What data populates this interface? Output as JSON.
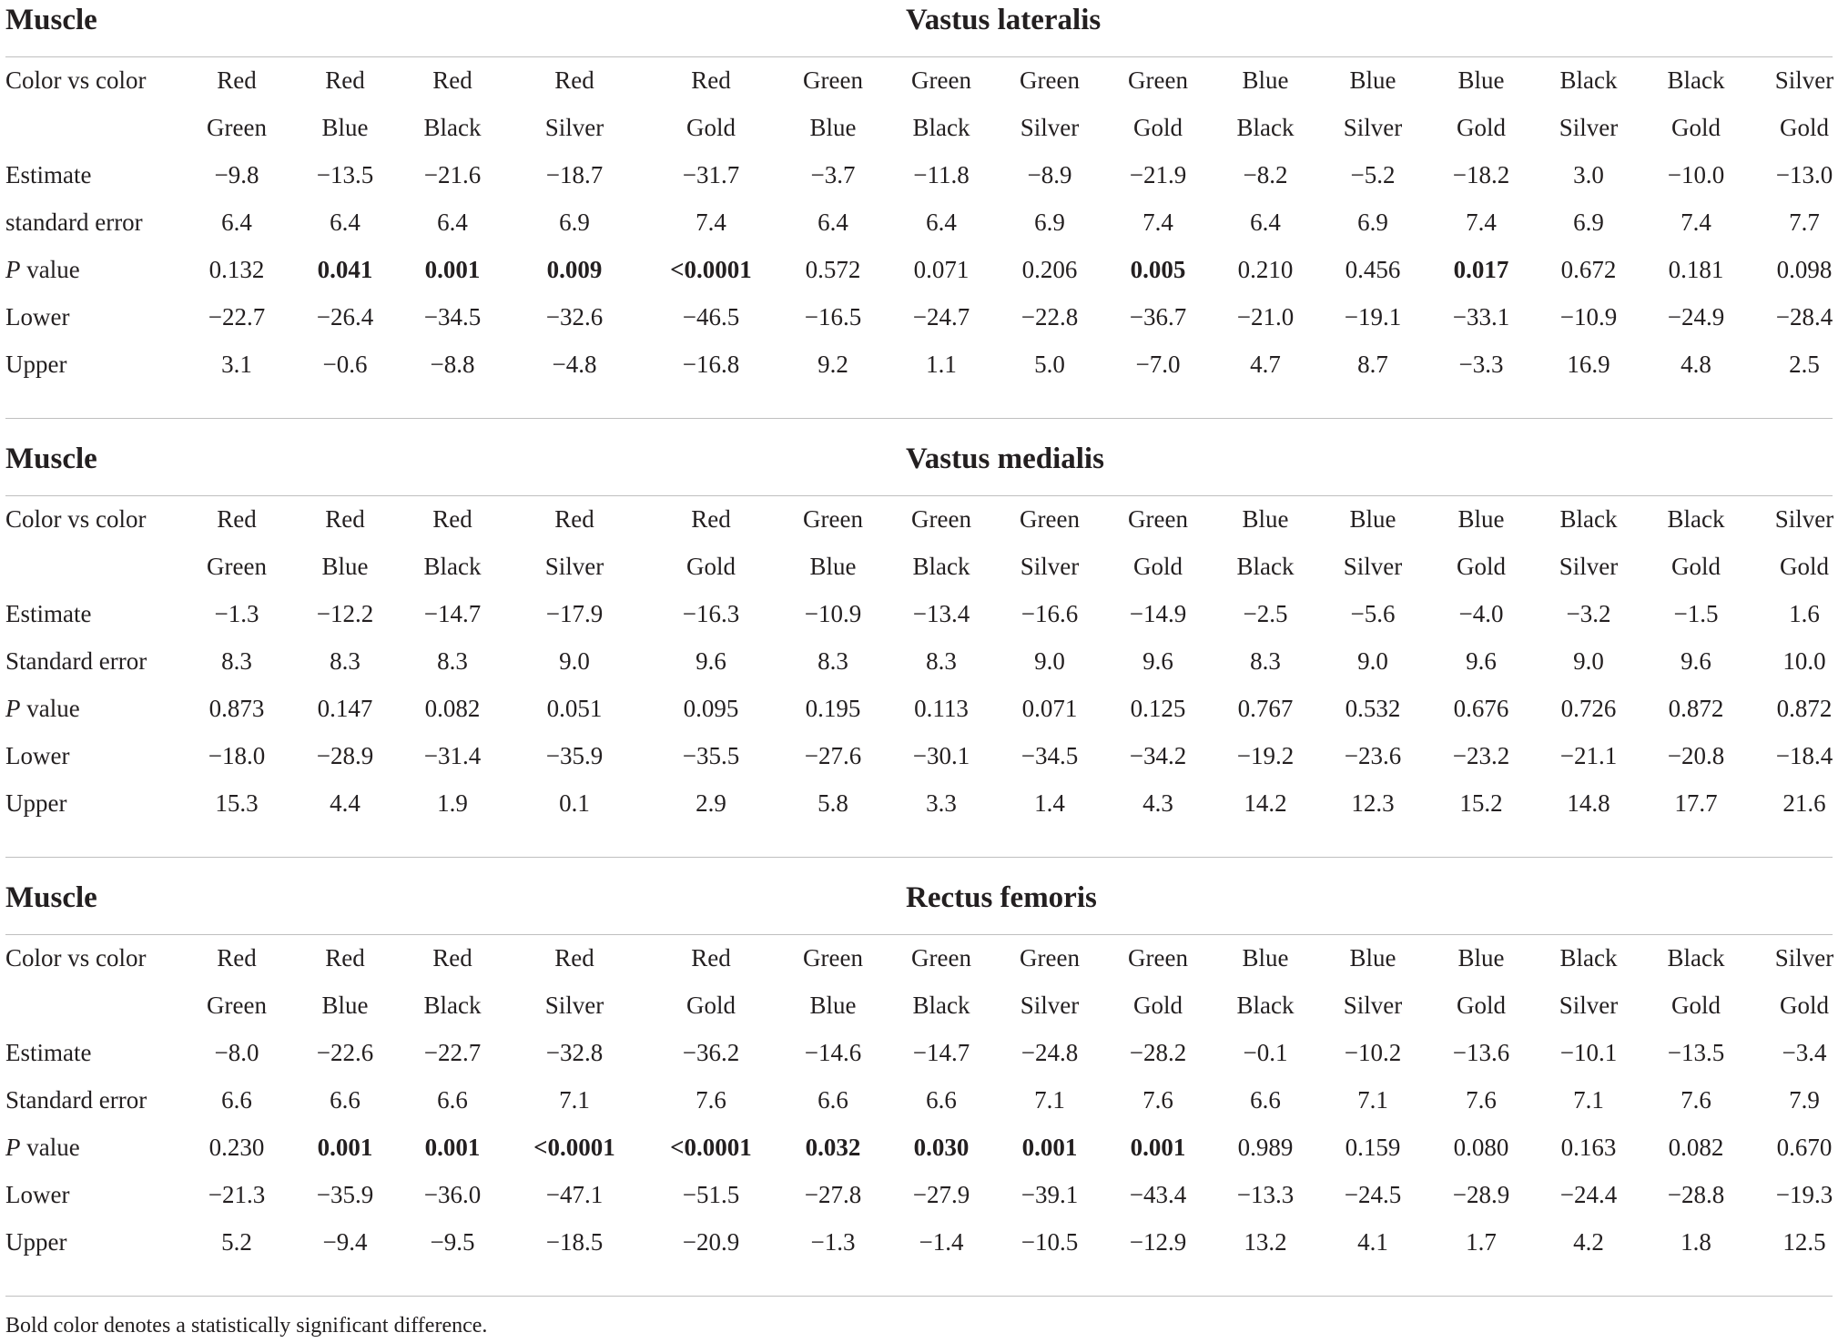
{
  "comparisons": {
    "first": [
      "Red",
      "Red",
      "Red",
      "Red",
      "Red",
      "Green",
      "Green",
      "Green",
      "Green",
      "Blue",
      "Blue",
      "Blue",
      "Black",
      "Black",
      "Silver"
    ],
    "second": [
      "Green",
      "Blue",
      "Black",
      "Silver",
      "Gold",
      "Blue",
      "Black",
      "Silver",
      "Gold",
      "Black",
      "Silver",
      "Gold",
      "Silver",
      "Gold",
      "Gold"
    ]
  },
  "labels": {
    "muscle": "Muscle",
    "color_vs_color": "Color vs color",
    "estimate": "Estimate",
    "p_italic": "P",
    "p_rest": " value",
    "lower": "Lower",
    "upper": "Upper"
  },
  "sections": [
    {
      "name": "Vastus lateralis",
      "se_label": "standard error",
      "estimate": [
        "−9.8",
        "−13.5",
        "−21.6",
        "−18.7",
        "−31.7",
        "−3.7",
        "−11.8",
        "−8.9",
        "−21.9",
        "−8.2",
        "−5.2",
        "−18.2",
        "3.0",
        "−10.0",
        "−13.0"
      ],
      "se": [
        "6.4",
        "6.4",
        "6.4",
        "6.9",
        "7.4",
        "6.4",
        "6.4",
        "6.9",
        "7.4",
        "6.4",
        "6.9",
        "7.4",
        "6.9",
        "7.4",
        "7.7"
      ],
      "p": [
        "0.132",
        "0.041",
        "0.001",
        "0.009",
        "<0.0001",
        "0.572",
        "0.071",
        "0.206",
        "0.005",
        "0.210",
        "0.456",
        "0.017",
        "0.672",
        "0.181",
        "0.098"
      ],
      "p_bold": [
        false,
        true,
        true,
        true,
        true,
        false,
        false,
        false,
        true,
        false,
        false,
        true,
        false,
        false,
        false
      ],
      "lower": [
        "−22.7",
        "−26.4",
        "−34.5",
        "−32.6",
        "−46.5",
        "−16.5",
        "−24.7",
        "−22.8",
        "−36.7",
        "−21.0",
        "−19.1",
        "−33.1",
        "−10.9",
        "−24.9",
        "−28.4"
      ],
      "upper": [
        "3.1",
        "−0.6",
        "−8.8",
        "−4.8",
        "−16.8",
        "9.2",
        "1.1",
        "5.0",
        "−7.0",
        "4.7",
        "8.7",
        "−3.3",
        "16.9",
        "4.8",
        "2.5"
      ]
    },
    {
      "name": "Vastus medialis",
      "se_label": "Standard error",
      "estimate": [
        "−1.3",
        "−12.2",
        "−14.7",
        "−17.9",
        "−16.3",
        "−10.9",
        "−13.4",
        "−16.6",
        "−14.9",
        "−2.5",
        "−5.6",
        "−4.0",
        "−3.2",
        "−1.5",
        "1.6"
      ],
      "se": [
        "8.3",
        "8.3",
        "8.3",
        "9.0",
        "9.6",
        "8.3",
        "8.3",
        "9.0",
        "9.6",
        "8.3",
        "9.0",
        "9.6",
        "9.0",
        "9.6",
        "10.0"
      ],
      "p": [
        "0.873",
        "0.147",
        "0.082",
        "0.051",
        "0.095",
        "0.195",
        "0.113",
        "0.071",
        "0.125",
        "0.767",
        "0.532",
        "0.676",
        "0.726",
        "0.872",
        "0.872"
      ],
      "p_bold": [
        false,
        false,
        false,
        false,
        false,
        false,
        false,
        false,
        false,
        false,
        false,
        false,
        false,
        false,
        false
      ],
      "lower": [
        "−18.0",
        "−28.9",
        "−31.4",
        "−35.9",
        "−35.5",
        "−27.6",
        "−30.1",
        "−34.5",
        "−34.2",
        "−19.2",
        "−23.6",
        "−23.2",
        "−21.1",
        "−20.8",
        "−18.4"
      ],
      "upper": [
        "15.3",
        "4.4",
        "1.9",
        "0.1",
        "2.9",
        "5.8",
        "3.3",
        "1.4",
        "4.3",
        "14.2",
        "12.3",
        "15.2",
        "14.8",
        "17.7",
        "21.6"
      ]
    },
    {
      "name": "Rectus femoris",
      "se_label": "Standard error",
      "estimate": [
        "−8.0",
        "−22.6",
        "−22.7",
        "−32.8",
        "−36.2",
        "−14.6",
        "−14.7",
        "−24.8",
        "−28.2",
        "−0.1",
        "−10.2",
        "−13.6",
        "−10.1",
        "−13.5",
        "−3.4"
      ],
      "se": [
        "6.6",
        "6.6",
        "6.6",
        "7.1",
        "7.6",
        "6.6",
        "6.6",
        "7.1",
        "7.6",
        "6.6",
        "7.1",
        "7.6",
        "7.1",
        "7.6",
        "7.9"
      ],
      "p": [
        "0.230",
        "0.001",
        "0.001",
        "<0.0001",
        "<0.0001",
        "0.032",
        "0.030",
        "0.001",
        "0.001",
        "0.989",
        "0.159",
        "0.080",
        "0.163",
        "0.082",
        "0.670"
      ],
      "p_bold": [
        false,
        true,
        true,
        true,
        true,
        true,
        true,
        true,
        true,
        false,
        false,
        false,
        false,
        false,
        false
      ],
      "lower": [
        "−21.3",
        "−35.9",
        "−36.0",
        "−47.1",
        "−51.5",
        "−27.8",
        "−27.9",
        "−39.1",
        "−43.4",
        "−13.3",
        "−24.5",
        "−28.9",
        "−24.4",
        "−28.8",
        "−19.3"
      ],
      "upper": [
        "5.2",
        "−9.4",
        "−9.5",
        "−18.5",
        "−20.9",
        "−1.3",
        "−1.4",
        "−10.5",
        "−12.9",
        "13.2",
        "4.1",
        "1.7",
        "4.2",
        "1.8",
        "12.5"
      ]
    }
  ],
  "footnote": "Bold color denotes a statistically significant difference."
}
